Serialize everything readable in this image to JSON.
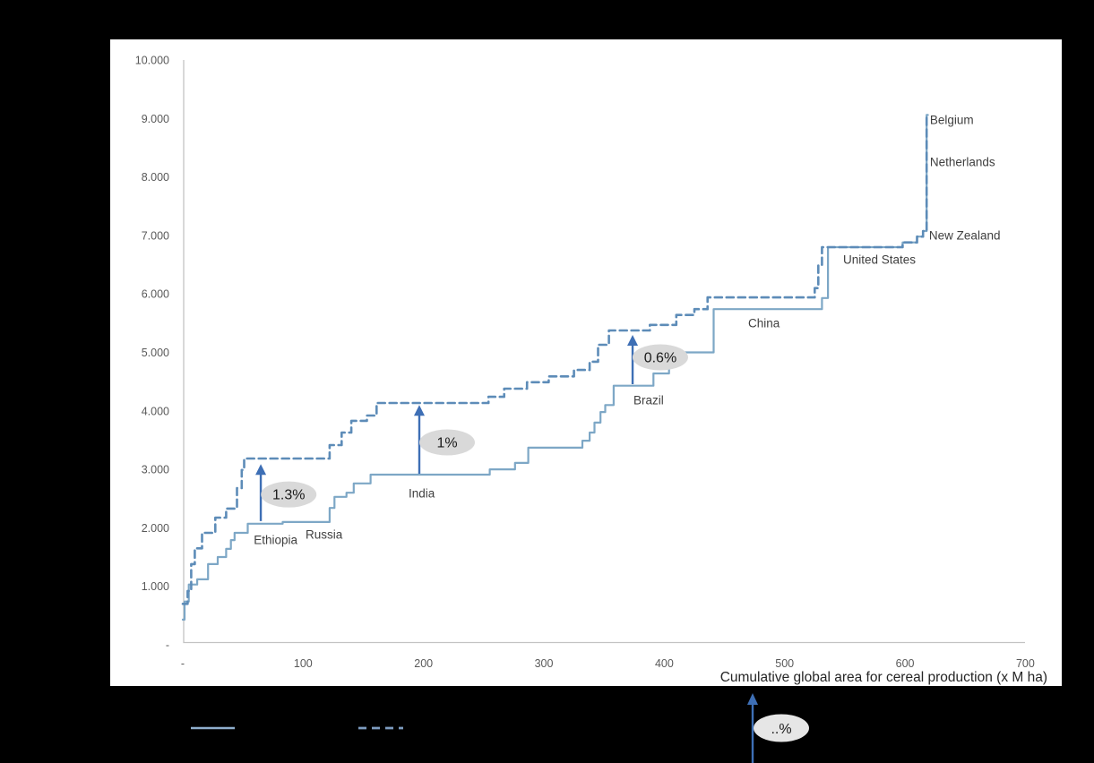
{
  "window": {
    "background": "#000000",
    "panel_background": "#ffffff"
  },
  "chart_data": {
    "type": "line",
    "subtype": "step",
    "title": "",
    "xlabel": "Cumulative global area for cereal production (x M ha)",
    "ylabel": "",
    "xlim": [
      0,
      700
    ],
    "ylim": [
      0,
      10000
    ],
    "grid": false,
    "legend_position": "bottom",
    "axis_color": "#c3c3c3",
    "tick_color": "#595959",
    "text_color": "#3f3f3f",
    "arrow_color": "#3e6fb5",
    "ellipse_fill": "#d9d9d9",
    "x_ticks": [
      {
        "label": "-",
        "value": 0
      },
      {
        "label": "100",
        "value": 100
      },
      {
        "label": "200",
        "value": 200
      },
      {
        "label": "300",
        "value": 300
      },
      {
        "label": "400",
        "value": 400
      },
      {
        "label": "500",
        "value": 500
      },
      {
        "label": "600",
        "value": 600
      },
      {
        "label": "700",
        "value": 700
      }
    ],
    "y_ticks": [
      {
        "label": "10.000",
        "value": 10000
      },
      {
        "label": "9.000",
        "value": 9000
      },
      {
        "label": "8.000",
        "value": 8000
      },
      {
        "label": "7.000",
        "value": 7000
      },
      {
        "label": "6.000",
        "value": 6000
      },
      {
        "label": "5.000",
        "value": 5000
      },
      {
        "label": "4.000",
        "value": 4000
      },
      {
        "label": "3.000",
        "value": 3000
      },
      {
        "label": "2.000",
        "value": 2000
      },
      {
        "label": "1.000",
        "value": 1000
      },
      {
        "label": "-",
        "value": 0
      }
    ],
    "series": [
      {
        "name": "cereal-yield-curve-solid",
        "style": "solid",
        "color": "#7da7c6",
        "width": 2.2,
        "end_x": 619,
        "points": [
          [
            0,
            430
          ],
          [
            1.5,
            740
          ],
          [
            5,
            1030
          ],
          [
            12,
            1120
          ],
          [
            21,
            1380
          ],
          [
            29,
            1500
          ],
          [
            36,
            1640
          ],
          [
            40,
            1790
          ],
          [
            43,
            1915
          ],
          [
            54,
            2070
          ],
          [
            83,
            2100
          ],
          [
            122,
            2340
          ],
          [
            126,
            2530
          ],
          [
            136,
            2600
          ],
          [
            142,
            2760
          ],
          [
            156,
            2910
          ],
          [
            255,
            3000
          ],
          [
            276,
            3110
          ],
          [
            287,
            3370
          ],
          [
            332,
            3490
          ],
          [
            338,
            3630
          ],
          [
            342,
            3800
          ],
          [
            347,
            3980
          ],
          [
            351,
            4100
          ],
          [
            358,
            4430
          ],
          [
            391,
            4640
          ],
          [
            404,
            5000
          ],
          [
            441,
            5740
          ],
          [
            531,
            5930
          ],
          [
            536,
            6800
          ],
          [
            598,
            6880
          ],
          [
            610,
            6980
          ],
          [
            615,
            7075
          ],
          [
            618,
            9060
          ]
        ]
      },
      {
        "name": "cereal-yield-curve-dashed",
        "style": "dashed",
        "color": "#5d8cb8",
        "width": 2.6,
        "dash": "8 5",
        "end_x": 619,
        "points": [
          [
            0,
            700
          ],
          [
            4,
            920
          ],
          [
            7,
            1380
          ],
          [
            10,
            1650
          ],
          [
            16,
            1915
          ],
          [
            27,
            2175
          ],
          [
            36,
            2330
          ],
          [
            45,
            2680
          ],
          [
            49,
            2990
          ],
          [
            51,
            3185
          ],
          [
            122,
            3415
          ],
          [
            132,
            3630
          ],
          [
            140,
            3830
          ],
          [
            153,
            3920
          ],
          [
            161,
            4135
          ],
          [
            254,
            4240
          ],
          [
            267,
            4380
          ],
          [
            286,
            4490
          ],
          [
            304,
            4590
          ],
          [
            325,
            4700
          ],
          [
            338,
            4840
          ],
          [
            345,
            5130
          ],
          [
            354,
            5375
          ],
          [
            388,
            5470
          ],
          [
            410,
            5640
          ],
          [
            425,
            5740
          ],
          [
            436,
            5940
          ],
          [
            525,
            6100
          ],
          [
            528,
            6500
          ],
          [
            531,
            6800
          ],
          [
            598,
            6880
          ],
          [
            610,
            6980
          ],
          [
            615,
            7075
          ],
          [
            618,
            9060
          ]
        ]
      }
    ],
    "country_labels": [
      {
        "label": "Ethiopia",
        "x": 59,
        "y": 1790
      },
      {
        "label": "Russia",
        "x": 102,
        "y": 1884
      },
      {
        "label": "India",
        "x": 187.6,
        "y": 2588
      },
      {
        "label": "Brazil",
        "x": 374.4,
        "y": 4180
      },
      {
        "label": "China",
        "x": 469.7,
        "y": 5497
      },
      {
        "label": "United States",
        "x": 548.6,
        "y": 6585
      },
      {
        "label": "New Zealand",
        "x": 620,
        "y": 6999
      },
      {
        "label": "Netherlands",
        "x": 620.7,
        "y": 8254
      },
      {
        "label": "Belgium",
        "x": 620.7,
        "y": 8974
      }
    ],
    "gap_annotations": [
      {
        "label": "1.3%",
        "x": 64.8,
        "y_from": 2100,
        "y_to": 3090,
        "ellipse_x": 88,
        "ellipse_y": 2570
      },
      {
        "label": "1%",
        "x": 196.5,
        "y_from": 2910,
        "y_to": 4100,
        "ellipse_x": 219.6,
        "ellipse_y": 3461
      },
      {
        "label": "0.6%",
        "x": 373.7,
        "y_from": 4441,
        "y_to": 5298,
        "ellipse_x": 396.7,
        "ellipse_y": 4916
      }
    ]
  },
  "legend": {
    "pct_label": "..%"
  }
}
